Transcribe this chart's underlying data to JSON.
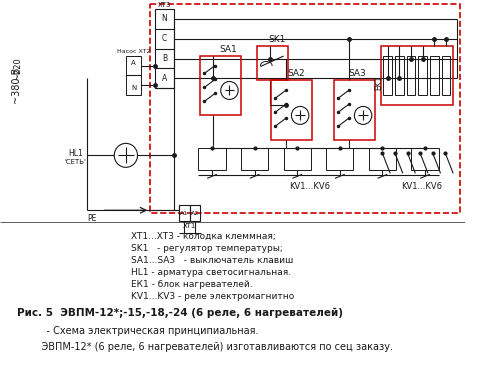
{
  "bg": "#ffffff",
  "lc": "#1a1a1a",
  "rc": "#cc0000",
  "fig_w": 4.8,
  "fig_h": 3.67,
  "dpi": 100,
  "legend": [
    "XT1...XT3 - колодка клеммная;",
    "SK1   - регулятор температуры;",
    "SA1...SA3   - выключатель клавиш",
    "HL1 - арматура светосигнальная.",
    "ЕК1 - блок нагревателей.",
    "KV1...KV3 - реле электромагнитно"
  ],
  "caption1": "Рис. 5  ЭВПМ-12*;-15,-18,-24 (6 реле, 6 нагревателей)",
  "caption2": "    - Схема электрическая принципиальная.",
  "caption3": "    ЭВПМ-12* (6 реле, 6 нагревателей) изготавливаются по сец заказу."
}
